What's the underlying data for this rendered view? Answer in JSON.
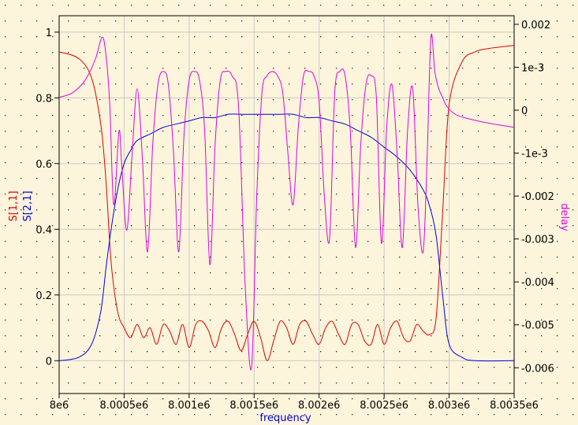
{
  "colors": {
    "background": "#fdf5db",
    "grid": "#c8c8c8",
    "dots": "#222222",
    "s11": "#e00000",
    "s21": "#0000e0",
    "delay": "#e000e0"
  },
  "chart_data": {
    "type": "line",
    "xlabel": "frequency",
    "ylabel_left": [
      "S[1,1]",
      "S[2,1]"
    ],
    "ylabel_right": "delay",
    "xlim": [
      8000000,
      8003500
    ],
    "ylim_left": [
      -0.1,
      1.05
    ],
    "ylim_right": [
      -0.0066,
      0.0022
    ],
    "x_ticks": [
      "8e6",
      "8.0005e6",
      "8.001e6",
      "8.0015e6",
      "8.002e6",
      "8.0025e6",
      "8.003e6",
      "8.0035e6"
    ],
    "y_left_ticks": [
      "0",
      "0.2",
      "0.4",
      "0.6",
      "0.8",
      "1"
    ],
    "y_right_ticks": [
      "-0.006",
      "-0.005",
      "-0.004",
      "-0.003",
      "-0.002",
      "-1e-3",
      "0",
      "1e-3",
      "0.002"
    ],
    "grid": true,
    "series": [
      {
        "name": "S[1,1]",
        "axis": "left",
        "x": [
          8000000,
          8000150,
          8000250,
          8000320,
          8000360,
          8000400,
          8000450,
          8000500,
          8000550,
          8000600,
          8000650,
          8000700,
          8000750,
          8000800,
          8000850,
          8000900,
          8000950,
          8001000,
          8001050,
          8001100,
          8001150,
          8001200,
          8001250,
          8001300,
          8001350,
          8001400,
          8001450,
          8001500,
          8001550,
          8001600,
          8001650,
          8001700,
          8001750,
          8001800,
          8001850,
          8001900,
          8001950,
          8002000,
          8002050,
          8002100,
          8002150,
          8002200,
          8002250,
          8002300,
          8002350,
          8002400,
          8002450,
          8002500,
          8002550,
          8002600,
          8002650,
          8002700,
          8002750,
          8002800,
          8002850,
          8002900,
          8002950,
          8003000,
          8003100,
          8003200,
          8003300,
          8003500
        ],
        "values": [
          0.94,
          0.92,
          0.86,
          0.72,
          0.55,
          0.3,
          0.15,
          0.1,
          0.07,
          0.11,
          0.07,
          0.1,
          0.05,
          0.11,
          0.09,
          0.05,
          0.11,
          0.04,
          0.11,
          0.12,
          0.09,
          0.04,
          0.1,
          0.12,
          0.08,
          0.03,
          0.08,
          0.12,
          0.07,
          0.0,
          0.06,
          0.12,
          0.1,
          0.05,
          0.11,
          0.12,
          0.08,
          0.05,
          0.1,
          0.12,
          0.08,
          0.05,
          0.11,
          0.11,
          0.06,
          0.05,
          0.11,
          0.05,
          0.1,
          0.12,
          0.07,
          0.06,
          0.11,
          0.09,
          0.08,
          0.13,
          0.45,
          0.78,
          0.91,
          0.94,
          0.95,
          0.96
        ]
      },
      {
        "name": "S[2,1]",
        "axis": "left",
        "x": [
          8000000,
          8000150,
          8000250,
          8000320,
          8000360,
          8000400,
          8000450,
          8000500,
          8000550,
          8000600,
          8000700,
          8000800,
          8000900,
          8001000,
          8001100,
          8001200,
          8001300,
          8001400,
          8001500,
          8001600,
          8001700,
          8001800,
          8001900,
          8002000,
          8002100,
          8002200,
          8002300,
          8002400,
          8002500,
          8002600,
          8002700,
          8002800,
          8002850,
          8002900,
          8002950,
          8003000,
          8003100,
          8003200,
          8003500
        ],
        "values": [
          0.0,
          0.01,
          0.05,
          0.15,
          0.28,
          0.4,
          0.52,
          0.6,
          0.64,
          0.67,
          0.69,
          0.71,
          0.72,
          0.73,
          0.74,
          0.74,
          0.75,
          0.75,
          0.75,
          0.75,
          0.75,
          0.75,
          0.74,
          0.74,
          0.73,
          0.72,
          0.7,
          0.68,
          0.65,
          0.62,
          0.58,
          0.52,
          0.47,
          0.38,
          0.2,
          0.05,
          0.01,
          0.0,
          0.0
        ]
      },
      {
        "name": "delay",
        "axis": "right",
        "x": [
          8000000,
          8000100,
          8000200,
          8000280,
          8000330,
          8000360,
          8000390,
          8000420,
          8000460,
          8000480,
          8000520,
          8000560,
          8000600,
          8000640,
          8000680,
          8000720,
          8000760,
          8000800,
          8000840,
          8000880,
          8000920,
          8000960,
          8001000,
          8001040,
          8001080,
          8001120,
          8001160,
          8001200,
          8001240,
          8001280,
          8001330,
          8001380,
          8001430,
          8001480,
          8001520,
          8001560,
          8001600,
          8001640,
          8001680,
          8001720,
          8001760,
          8001800,
          8001840,
          8001880,
          8001920,
          8001960,
          8002000,
          8002040,
          8002080,
          8002120,
          8002160,
          8002200,
          8002240,
          8002280,
          8002320,
          8002360,
          8002400,
          8002440,
          8002480,
          8002520,
          8002560,
          8002600,
          8002640,
          8002680,
          8002720,
          8002760,
          8002800,
          8002830,
          8002860,
          8002890,
          8002920,
          8002950,
          8002980,
          8003050,
          8003150,
          8003300,
          8003500
        ],
        "values": [
          0.0003,
          0.0004,
          0.0007,
          0.0012,
          0.0017,
          0.0013,
          0.0001,
          -0.0022,
          -0.0005,
          -0.0012,
          -0.0028,
          -0.0011,
          0.0005,
          -0.0011,
          -0.0033,
          -0.0008,
          0.0006,
          0.0009,
          0.0006,
          -0.001,
          -0.0033,
          -0.0006,
          0.0007,
          0.0009,
          0.0007,
          -0.0005,
          -0.0036,
          -0.0008,
          0.0007,
          0.0009,
          0.0008,
          0.0001,
          -0.004,
          -0.006,
          -0.002,
          0.0004,
          0.0008,
          0.0009,
          0.0008,
          0.0004,
          -0.001,
          -0.0022,
          -0.0004,
          0.0008,
          0.0009,
          0.0008,
          0.0002,
          -0.002,
          -0.003,
          0.0004,
          0.0009,
          0.0008,
          -0.0005,
          -0.0032,
          -0.0008,
          0.0006,
          0.0008,
          0.0003,
          -0.0031,
          -0.0004,
          0.0006,
          -0.001,
          -0.0032,
          -0.0005,
          0.0005,
          -0.0022,
          -0.0033,
          -0.0012,
          0.0017,
          0.0009,
          0.0005,
          0.0003,
          0.0001,
          -0.0001,
          -0.0002,
          -0.0003,
          -0.0004
        ]
      }
    ]
  }
}
